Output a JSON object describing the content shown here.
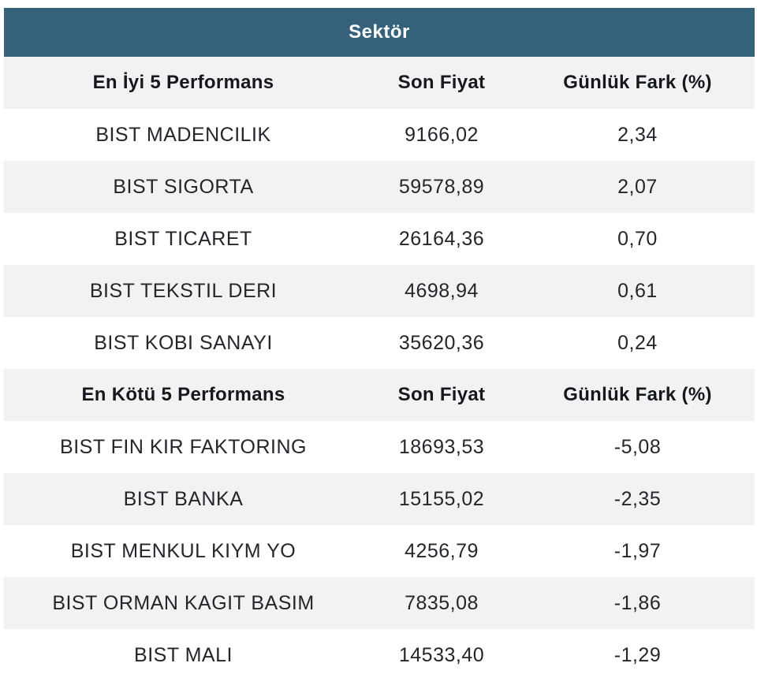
{
  "colors": {
    "header_bg": "#35617A",
    "header_text": "#FFFFFF",
    "stripe_row_bg": "#F2F2F2",
    "plain_row_bg": "#FFFFFF",
    "body_text": "#23262B"
  },
  "chart_data": {
    "type": "table",
    "title": "Sektör",
    "sections": [
      {
        "header": [
          "En İyi 5 Performans",
          "Son Fiyat",
          "Günlük Fark (%)"
        ],
        "rows": [
          [
            "BIST MADENCILIK",
            "9166,02",
            "2,34"
          ],
          [
            "BIST SIGORTA",
            "59578,89",
            "2,07"
          ],
          [
            "BIST TICARET",
            "26164,36",
            "0,70"
          ],
          [
            "BIST TEKSTIL DERI",
            "4698,94",
            "0,61"
          ],
          [
            "BIST KOBI SANAYI",
            "35620,36",
            "0,24"
          ]
        ]
      },
      {
        "header": [
          "En Kötü 5 Performans",
          "Son Fiyat",
          "Günlük Fark (%)"
        ],
        "rows": [
          [
            "BIST FIN KIR FAKTORING",
            "18693,53",
            "-5,08"
          ],
          [
            "BIST BANKA",
            "15155,02",
            "-2,35"
          ],
          [
            "BIST MENKUL KIYM YO",
            "4256,79",
            "-1,97"
          ],
          [
            "BIST ORMAN KAGIT BASIM",
            "7835,08",
            "-1,86"
          ],
          [
            "BIST MALI",
            "14533,40",
            "-1,29"
          ]
        ]
      }
    ]
  }
}
